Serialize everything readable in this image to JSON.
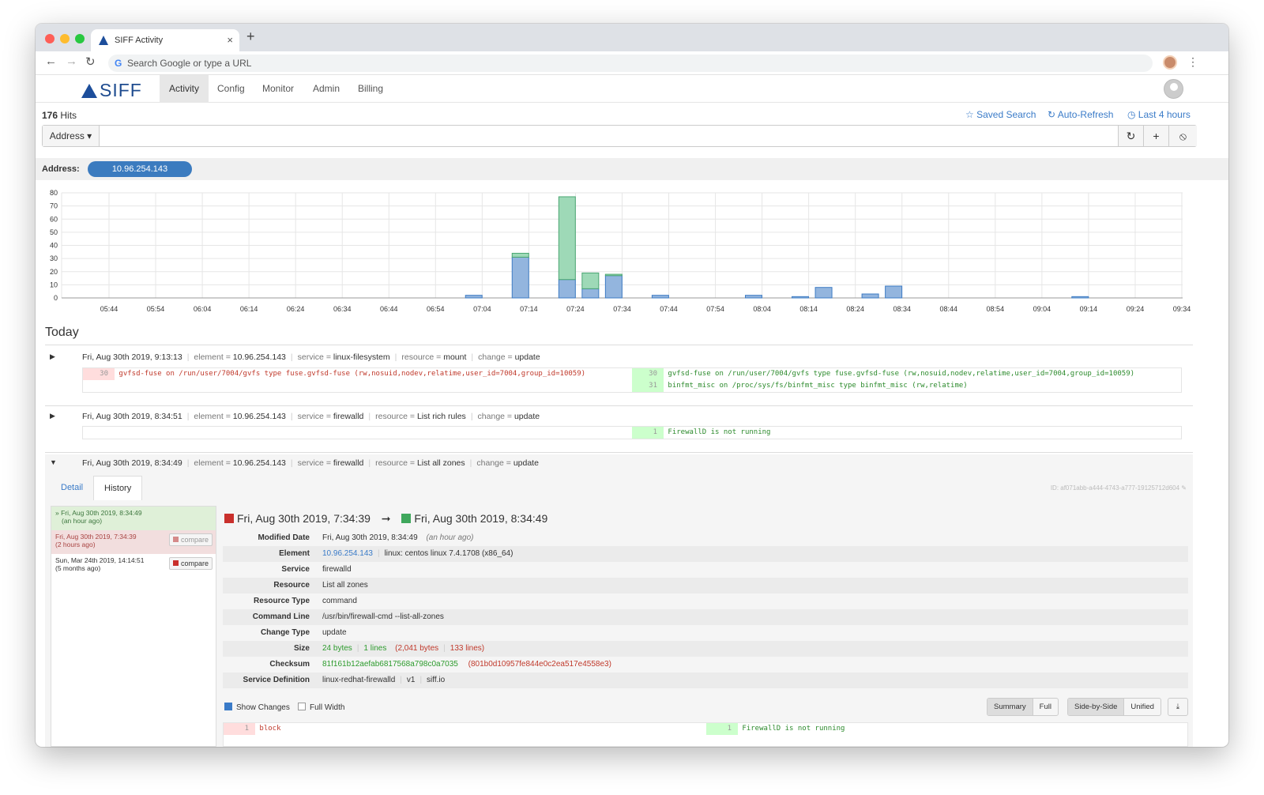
{
  "browser": {
    "tab_title": "SIFF Activity",
    "tab_close": "×",
    "new_tab": "+",
    "address_placeholder": "Search Google or type a URL",
    "back": "←",
    "forward": "→",
    "reload": "↻",
    "google_glyph": "G",
    "menu": "⋮",
    "colors": {
      "close": "#fe5f57",
      "minimize": "#febc2e",
      "maximize": "#28c840"
    }
  },
  "app": {
    "logo": "SIFF",
    "nav": [
      "Activity",
      "Config",
      "Monitor",
      "Admin",
      "Billing"
    ],
    "active_nav": "Activity",
    "accent": "#3a7bc8"
  },
  "search": {
    "hits_count": "176",
    "hits_label": " Hits",
    "saved_search": "☆ Saved Search",
    "auto_refresh": "↻ Auto-Refresh",
    "time_range": "◷ Last 4 hours",
    "field_dropdown": "Address ▾",
    "refresh_icon": "↻",
    "add_icon": "+",
    "clear_icon": "⦸"
  },
  "filter": {
    "label": "Address:",
    "value": "10.96.254.143"
  },
  "chart_data": {
    "type": "bar",
    "stacked": true,
    "categories": [
      "05:44",
      "05:54",
      "06:04",
      "06:14",
      "06:24",
      "06:34",
      "06:44",
      "06:54",
      "07:04",
      "07:14",
      "07:24",
      "07:34",
      "07:44",
      "07:54",
      "08:04",
      "08:14",
      "08:24",
      "08:34",
      "08:44",
      "08:54",
      "09:04",
      "09:14",
      "09:24",
      "09:34"
    ],
    "y_ticks": [
      0,
      10,
      20,
      30,
      40,
      50,
      60,
      70,
      80
    ],
    "ylim": [
      0,
      80
    ],
    "grid": true,
    "bars": [
      {
        "x": "07:00",
        "blue": 2,
        "green": 0
      },
      {
        "x": "07:10",
        "blue": 31,
        "green": 3
      },
      {
        "x": "07:20",
        "blue": 14,
        "green": 63
      },
      {
        "x": "07:25",
        "blue": 7,
        "green": 12
      },
      {
        "x": "07:30",
        "blue": 17,
        "green": 1
      },
      {
        "x": "07:40",
        "blue": 2,
        "green": 0
      },
      {
        "x": "08:00",
        "blue": 2,
        "green": 0
      },
      {
        "x": "08:10",
        "blue": 1,
        "green": 0
      },
      {
        "x": "08:15",
        "blue": 8,
        "green": 0
      },
      {
        "x": "08:25",
        "blue": 3,
        "green": 0
      },
      {
        "x": "08:30",
        "blue": 9,
        "green": 0
      },
      {
        "x": "09:10",
        "blue": 1,
        "green": 0
      }
    ],
    "colors": {
      "blue": "#93b5de",
      "blue_edge": "#3e7cc4",
      "green": "#9ed9b7",
      "green_edge": "#4aa672"
    }
  },
  "today_label": "Today",
  "events": [
    {
      "time": "Fri, Aug 30th 2019, 9:13:13",
      "element": "10.96.254.143",
      "service": "linux-filesystem",
      "resource": "mount",
      "change": "update",
      "toggle": "▶",
      "removed": [
        {
          "n": "30",
          "text": "gvfsd-fuse on /run/user/7004/gvfs type fuse.gvfsd-fuse (rw,nosuid,nodev,relatime,user_id=7004,group_id=10059)"
        }
      ],
      "added": [
        {
          "n": "30",
          "text": "gvfsd-fuse on /run/user/7004/gvfs type fuse.gvfsd-fuse (rw,nosuid,nodev,relatime,user_id=7004,group_id=10059)"
        },
        {
          "n": "31",
          "text": "binfmt_misc on /proc/sys/fs/binfmt_misc type binfmt_misc (rw,relatime)"
        }
      ]
    },
    {
      "time": "Fri, Aug 30th 2019, 8:34:51",
      "element": "10.96.254.143",
      "service": "firewalld",
      "resource": "List rich rules",
      "change": "update",
      "toggle": "▶",
      "added": [
        {
          "n": "1",
          "text": "FirewallD is not running"
        }
      ]
    },
    {
      "time": "Fri, Aug 30th 2019, 8:34:49",
      "element": "10.96.254.143",
      "service": "firewalld",
      "resource": "List all zones",
      "change": "update",
      "toggle": "▼"
    }
  ],
  "labels": {
    "element": "element = ",
    "service": "service = ",
    "resource": "resource = ",
    "change": "change = ",
    "sep": "|"
  },
  "detail_panel": {
    "tabs": [
      "Detail",
      "History"
    ],
    "active_tab": "History",
    "id_line": "ID: af071abb-a444-4743-a777-19125712d604",
    "edit_icon": "✎",
    "history": [
      {
        "line1": "» Fri, Aug 30th 2019, 8:34:49",
        "line2": "(an hour ago)",
        "state": "current"
      },
      {
        "line1": "Fri, Aug 30th 2019, 7:34:39",
        "line2": "(2 hours ago)",
        "state": "previous",
        "button": "compare"
      },
      {
        "line1": "Sun, Mar 24th 2019, 14:14:51",
        "line2": "(5 months ago)",
        "state": "older",
        "button": "compare"
      }
    ],
    "compare_from": "Fri, Aug 30th 2019, 7:34:39",
    "compare_arrow": "➞",
    "compare_to": "Fri, Aug 30th 2019, 8:34:49",
    "rows": [
      {
        "key": "Modified Date",
        "value": "Fri, Aug 30th 2019, 8:34:49",
        "extra": "(an hour ago)"
      },
      {
        "key": "Element",
        "value": "10.96.254.143",
        "extra": "linux: centos linux 7.4.1708 (x86_64)"
      },
      {
        "key": "Service",
        "value": "firewalld"
      },
      {
        "key": "Resource",
        "value": "List all zones"
      },
      {
        "key": "Resource Type",
        "value": "command"
      },
      {
        "key": "Command Line",
        "value": "/usr/bin/firewall-cmd --list-all-zones"
      },
      {
        "key": "Change Type",
        "value": "update"
      },
      {
        "key": "Size",
        "value": "24 bytes",
        "v2": "1 lines",
        "v3": "(2,041 bytes",
        "v4": "133 lines)"
      },
      {
        "key": "Checksum",
        "value": "81f161b12aefab6817568a798c0a7035",
        "extra": "(801b0d10957fe844e0c2ea517e4558e3)"
      },
      {
        "key": "Service Definition",
        "value": "linux-redhat-firewalld",
        "v2": "v1",
        "v3": "siff.io"
      }
    ],
    "show_changes": "Show Changes",
    "full_width": "Full Width",
    "view_buttons": [
      "Summary",
      "Full"
    ],
    "layout_buttons": [
      "Side-by-Side",
      "Unified"
    ],
    "download_icon": "⤓",
    "bottom_diff": {
      "removed": {
        "n": "1",
        "text": "block"
      },
      "added": {
        "n": "1",
        "text": "FirewallD is not running"
      }
    }
  }
}
